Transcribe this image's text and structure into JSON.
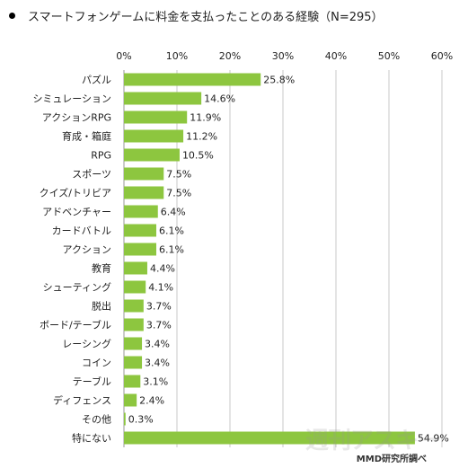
{
  "title": "スマートフォンゲームに料金を支払ったことのある経験（N=295）",
  "source": "MMD研究所調べ",
  "watermark": "週刊アスキー",
  "colors": {
    "bar": "#8dc63f",
    "grid": "#c8c8c8",
    "axis": "#9a9a9a"
  },
  "chart_data": {
    "type": "bar",
    "orientation": "horizontal",
    "title": "スマートフォンゲームに料金を支払ったことのある経験（N=295）",
    "xlim": [
      0,
      60
    ],
    "ticks": [
      0,
      10,
      20,
      30,
      40,
      50,
      60
    ],
    "tick_labels": [
      "0%",
      "10%",
      "20%",
      "30%",
      "40%",
      "50%",
      "60%"
    ],
    "tick_position": "top",
    "grid": true,
    "categories": [
      "パズル",
      "シミュレーション",
      "アクションRPG",
      "育成・箱庭",
      "RPG",
      "スポーツ",
      "クイズ/トリビア",
      "アドベンチャー",
      "カードバトル",
      "アクション",
      "教育",
      "シューティング",
      "脱出",
      "ボード/テーブル",
      "レーシング",
      "コイン",
      "テーブル",
      "ディフェンス",
      "その他",
      "特にない"
    ],
    "values": [
      25.8,
      14.6,
      11.9,
      11.2,
      10.5,
      7.5,
      7.5,
      6.4,
      6.1,
      6.1,
      4.4,
      4.1,
      3.7,
      3.7,
      3.4,
      3.4,
      3.1,
      2.4,
      0.3,
      54.9
    ],
    "value_labels": [
      "25.8%",
      "14.6%",
      "11.9%",
      "11.2%",
      "10.5%",
      "7.5%",
      "7.5%",
      "6.4%",
      "6.1%",
      "6.1%",
      "4.4%",
      "4.1%",
      "3.7%",
      "3.7%",
      "3.4%",
      "3.4%",
      "3.1%",
      "2.4%",
      "0.3%",
      "54.9%"
    ]
  }
}
